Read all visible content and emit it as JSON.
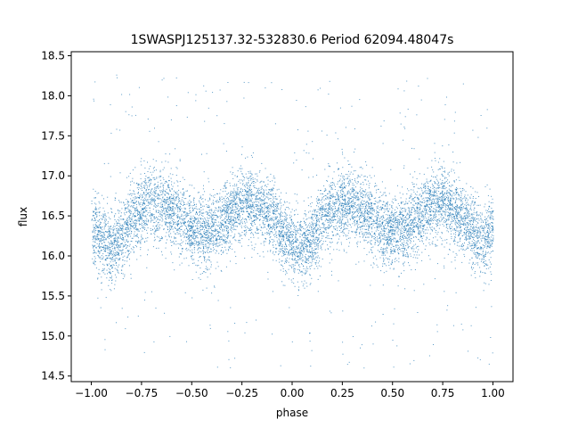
{
  "chart_data": {
    "type": "scatter",
    "title": "1SWASPJ125137.32-532830.6 Period 62094.48047s",
    "xlabel": "phase",
    "ylabel": "flux",
    "xlim": [
      -1.1,
      1.1
    ],
    "ylim": [
      14.43,
      18.55
    ],
    "x_ticks": [
      -1.0,
      -0.75,
      -0.5,
      -0.25,
      0.0,
      0.25,
      0.5,
      0.75,
      1.0
    ],
    "x_tick_labels": [
      "−1.00",
      "−0.75",
      "−0.50",
      "−0.25",
      "0.00",
      "0.25",
      "0.50",
      "0.75",
      "1.00"
    ],
    "y_ticks": [
      14.5,
      15.0,
      15.5,
      16.0,
      16.5,
      17.0,
      17.5,
      18.0,
      18.5
    ],
    "y_tick_labels": [
      "14.5",
      "15.0",
      "15.5",
      "16.0",
      "16.5",
      "17.0",
      "17.5",
      "18.0",
      "18.5"
    ],
    "grid": false,
    "legend": "none",
    "marker_color": "#1f77b4",
    "series": [
      {
        "phase_folded": true,
        "mean_flux": 16.45,
        "scatter_sd": 0.22,
        "outlier_range": [
          14.6,
          18.3
        ],
        "profile": {
          "phase": [
            -1.0,
            -0.95,
            -0.9,
            -0.85,
            -0.8,
            -0.75,
            -0.7,
            -0.65,
            -0.6,
            -0.55,
            -0.5,
            -0.45,
            -0.4,
            -0.35,
            -0.3,
            -0.25,
            -0.2,
            -0.15,
            -0.1,
            -0.05,
            0.0,
            0.05,
            0.1,
            0.15,
            0.2,
            0.25,
            0.3,
            0.35,
            0.4,
            0.45,
            0.5,
            0.55,
            0.6,
            0.65,
            0.7,
            0.75,
            0.8,
            0.85,
            0.9,
            0.95,
            1.0
          ],
          "flux": [
            16.35,
            16.2,
            16.12,
            16.22,
            16.45,
            16.6,
            16.68,
            16.65,
            16.58,
            16.47,
            16.35,
            16.3,
            16.32,
            16.42,
            16.55,
            16.65,
            16.68,
            16.6,
            16.48,
            16.3,
            16.15,
            16.1,
            16.22,
            16.45,
            16.6,
            16.68,
            16.66,
            16.58,
            16.47,
            16.35,
            16.3,
            16.32,
            16.42,
            16.55,
            16.65,
            16.68,
            16.6,
            16.48,
            16.3,
            16.2,
            16.35
          ]
        }
      }
    ]
  }
}
